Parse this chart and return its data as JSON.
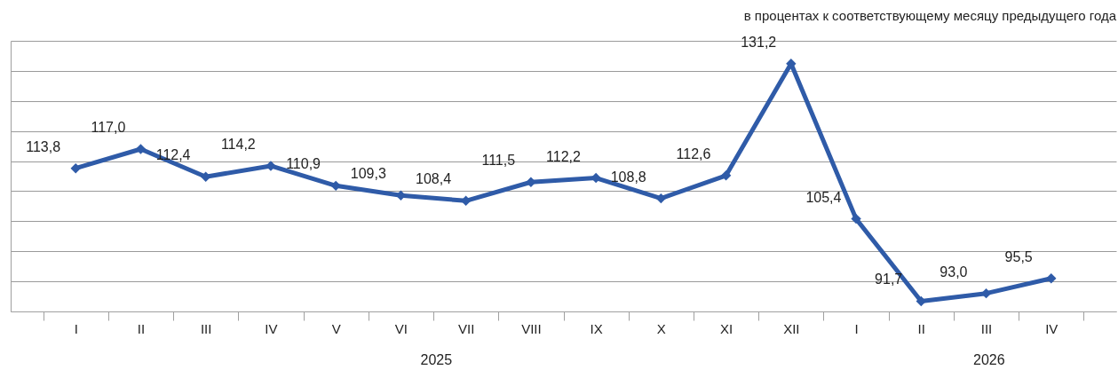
{
  "chart_data": {
    "type": "line",
    "title": "в процентах к соответствующему месяцу предыдущего года",
    "categories": [
      "I",
      "II",
      "III",
      "IV",
      "V",
      "VI",
      "VII",
      "VIII",
      "IX",
      "X",
      "XI",
      "XII",
      "I",
      "II",
      "III",
      "IV"
    ],
    "series": [
      {
        "color": "#2f5ba8",
        "values": [
          113.8,
          117.0,
          112.4,
          114.2,
          110.9,
          109.3,
          108.4,
          111.5,
          112.2,
          108.8,
          112.6,
          131.2,
          105.4,
          91.7,
          93.0,
          95.5
        ],
        "value_labels": [
          "113,8",
          "117,0",
          "112,4",
          "114,2",
          "110,9",
          "109,3",
          "108,4",
          "111,5",
          "112,2",
          "108,8",
          "112,6",
          "131,2",
          "105,4",
          "91,7",
          "93,0",
          "95,5"
        ]
      }
    ],
    "annotations": [
      "2025",
      "2026"
    ],
    "tick_labels": "x",
    "grid": "y",
    "marker": "diamond",
    "line_style": "solid"
  }
}
